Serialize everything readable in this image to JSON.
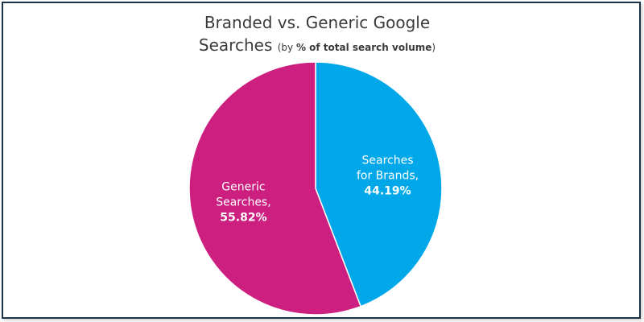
{
  "chart_data": {
    "type": "pie",
    "title": "Branded vs. Generic Google Searches",
    "subtitle_prefix": "(by ",
    "subtitle_bold": "% of total search volume",
    "subtitle_suffix": ")",
    "slices": [
      {
        "label_lines": [
          "Searches",
          "for Brands,"
        ],
        "value_text": "44.19%",
        "value": 44.19,
        "color": "#00a8ea"
      },
      {
        "label_lines": [
          "Generic",
          "Searches,"
        ],
        "value_text": "55.82%",
        "value": 55.82,
        "color": "#cc1f80"
      }
    ]
  }
}
